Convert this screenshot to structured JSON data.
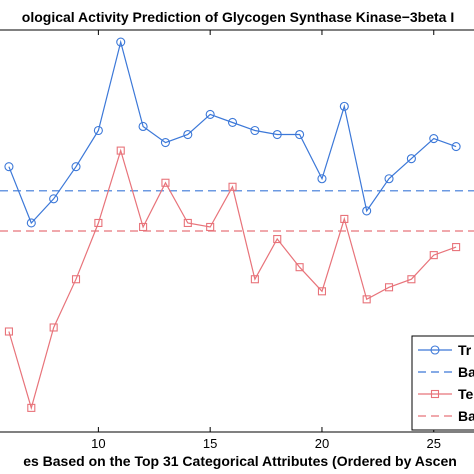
{
  "chart_data": {
    "type": "line",
    "title": "ological Activity Prediction of Glycogen Synthase Kinase−3beta I",
    "xlabel": "es Based on the Top 31 Categorical Attributes (Ordered by Ascen",
    "ylabel": "",
    "xlim": [
      5.6,
      26.8
    ],
    "ylim": [
      0,
      1
    ],
    "x_ticks": [
      10,
      15,
      20,
      25
    ],
    "grid": false,
    "legend_position": "bottom-right",
    "colors": {
      "blue": "#3c78d8",
      "red": "#e8737a",
      "axis": "#000000"
    },
    "series": [
      {
        "name": "Tr",
        "color": "blue",
        "line_style": "solid",
        "marker": "circle",
        "x": [
          6,
          7,
          8,
          9,
          10,
          11,
          12,
          13,
          14,
          15,
          16,
          17,
          18,
          19,
          20,
          21,
          22,
          23,
          24,
          25,
          26
        ],
        "y": [
          0.66,
          0.52,
          0.58,
          0.66,
          0.75,
          0.97,
          0.76,
          0.72,
          0.74,
          0.79,
          0.77,
          0.75,
          0.74,
          0.74,
          0.63,
          0.81,
          0.55,
          0.63,
          0.68,
          0.73,
          0.71
        ]
      },
      {
        "name": "Ba",
        "color": "blue",
        "line_style": "dashed",
        "marker": "none",
        "x": [
          5.6,
          26.8
        ],
        "y": [
          0.6,
          0.6
        ]
      },
      {
        "name": "Te",
        "color": "red",
        "line_style": "solid",
        "marker": "square",
        "x": [
          6,
          7,
          8,
          9,
          10,
          11,
          12,
          13,
          14,
          15,
          16,
          17,
          18,
          19,
          20,
          21,
          22,
          23,
          24,
          25,
          26
        ],
        "y": [
          0.25,
          0.06,
          0.26,
          0.38,
          0.52,
          0.7,
          0.51,
          0.62,
          0.52,
          0.51,
          0.61,
          0.38,
          0.48,
          0.41,
          0.35,
          0.53,
          0.33,
          0.36,
          0.38,
          0.44,
          0.46
        ]
      },
      {
        "name": "Ba",
        "color": "red",
        "line_style": "dashed",
        "marker": "none",
        "x": [
          5.6,
          26.8
        ],
        "y": [
          0.5,
          0.5
        ]
      }
    ]
  }
}
